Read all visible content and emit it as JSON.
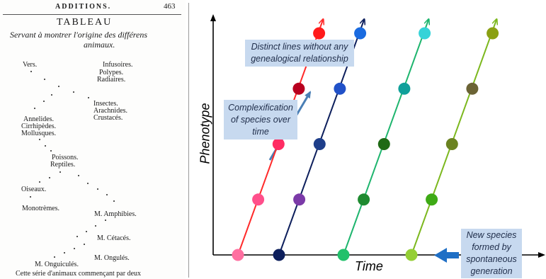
{
  "left_page": {
    "header_left": "ADDITIONS.",
    "header_page_number": "463",
    "table_title": "TABLEAU",
    "table_subtitle_line1": "Servant à montrer l'origine des différens",
    "table_subtitle_line2": "animaux.",
    "labels": {
      "vers": "Vers.",
      "infusoires": "Infusoires.",
      "polypes": "Polypes.",
      "radiaires": "Radiaires.",
      "insectes": "Insectes.",
      "arachnides": "Arachnides.",
      "crustaces": "Crustacés.",
      "annelides": "Annelides.",
      "cirrhipedes": "Cirrhipèdes.",
      "mollusques": "Mollusques.",
      "poissons": "Poissons.",
      "reptiles": "Reptiles.",
      "oiseaux": "Oiseaux.",
      "monotremes": "Monotrèmes.",
      "amphibies": "M. Amphibies.",
      "cetaces": "M. Cétacés.",
      "ongules": "M. Ongulés.",
      "onguicules": "M. Onguiculés."
    },
    "footer_text": "Cette série d'animaux commençant par deux"
  },
  "diagram": {
    "notes": {
      "distinct_lines": [
        "Distinct lines without any",
        "genealogical relationship"
      ],
      "complexification": [
        "Complexification",
        "of species over",
        "time"
      ],
      "new_species": [
        "New species",
        "formed by",
        "spontaneous",
        "generation"
      ]
    },
    "x_axis_label": "Time",
    "y_axis_label": "Phenotype",
    "colors": {
      "axis": "#000000",
      "note_bg": "#c7d9ef",
      "complexification_arrow": "#4a7fb5",
      "spontaneous_arrow": "#1f6fc5"
    },
    "lineages": [
      {
        "name": "lineage-1",
        "line_color": "#ff2a2a",
        "dots": [
          "#ff6fa0",
          "#ff4f8b",
          "#ff2c63",
          "#b8001f",
          "#ff1a1a"
        ]
      },
      {
        "name": "lineage-2",
        "line_color": "#0d1f5c",
        "dots": [
          "#0d1f5c",
          "#7b3aa8",
          "#1e3e8a",
          "#2151c8",
          "#1a6be0"
        ]
      },
      {
        "name": "lineage-3",
        "line_color": "#1eb56e",
        "dots": [
          "#22c16b",
          "#1e8a30",
          "#1f6a15",
          "#10a09a",
          "#35d3d8"
        ]
      },
      {
        "name": "lineage-4",
        "line_color": "#7cb81e",
        "dots": [
          "#95cf36",
          "#3eaa15",
          "#6a8220",
          "#6b6335",
          "#8aa012"
        ]
      }
    ]
  }
}
